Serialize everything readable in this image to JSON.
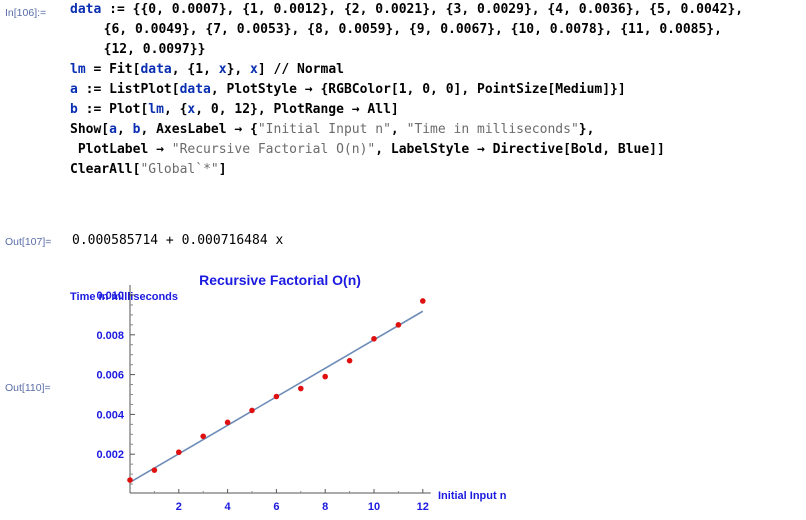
{
  "in_label": "In[106]:=",
  "input_lines": [
    [
      {
        "t": "data",
        "c": "sym"
      },
      {
        "t": " := {{0, 0.0007}, {1, 0.0012}, {2, 0.0021}, {3, 0.0029}, {4, 0.0036}, {5, 0.0042},",
        "c": "plain"
      }
    ],
    [
      {
        "t": "  {6, 0.0049}, {7, 0.0053}, {8, 0.0059}, {9, 0.0067}, {10, 0.0078}, {11, 0.0085},",
        "c": "plain"
      }
    ],
    [
      {
        "t": "  {12, 0.0097}}",
        "c": "plain"
      }
    ],
    [
      {
        "t": "lm",
        "c": "sym"
      },
      {
        "t": " = Fit[",
        "c": "plain"
      },
      {
        "t": "data",
        "c": "sym"
      },
      {
        "t": ", {1, ",
        "c": "plain"
      },
      {
        "t": "x",
        "c": "sym"
      },
      {
        "t": "}, ",
        "c": "plain"
      },
      {
        "t": "x",
        "c": "sym"
      },
      {
        "t": "] // Normal",
        "c": "plain"
      }
    ],
    [
      {
        "t": "a",
        "c": "sym"
      },
      {
        "t": " := ListPlot[",
        "c": "plain"
      },
      {
        "t": "data",
        "c": "sym"
      },
      {
        "t": ", PlotStyle → {RGBColor[1, 0, 0], PointSize[Medium]}]",
        "c": "plain"
      }
    ],
    [
      {
        "t": "b",
        "c": "sym"
      },
      {
        "t": " := Plot[",
        "c": "plain"
      },
      {
        "t": "lm",
        "c": "sym"
      },
      {
        "t": ", {",
        "c": "plain"
      },
      {
        "t": "x",
        "c": "sym"
      },
      {
        "t": ", 0, 12}, PlotRange → All]",
        "c": "plain"
      }
    ],
    [
      {
        "t": "Show[",
        "c": "plain"
      },
      {
        "t": "a",
        "c": "sym"
      },
      {
        "t": ", ",
        "c": "plain"
      },
      {
        "t": "b",
        "c": "sym"
      },
      {
        "t": ", AxesLabel → {",
        "c": "plain"
      },
      {
        "t": "\"Initial Input n\"",
        "c": "str"
      },
      {
        "t": ", ",
        "c": "plain"
      },
      {
        "t": "\"Time in milliseconds\"",
        "c": "str"
      },
      {
        "t": "},",
        "c": "plain"
      }
    ],
    [
      {
        "t": " PlotLabel → ",
        "c": "plain"
      },
      {
        "t": "\"Recursive Factorial O(n)\"",
        "c": "str"
      },
      {
        "t": ", LabelStyle → Directive[Bold, Blue]]",
        "c": "plain"
      }
    ],
    [
      {
        "t": "ClearAll[",
        "c": "plain"
      },
      {
        "t": "\"Global`*\"",
        "c": "str"
      },
      {
        "t": "]",
        "c": "plain"
      }
    ]
  ],
  "out107_label": "Out[107]=",
  "out107_value": "0.000585714 + 0.000716484 x",
  "out110_label": "Out[110]=",
  "chart_data": {
    "type": "scatter",
    "title": "Recursive Factorial O(n)",
    "xlabel": "Initial Input n",
    "ylabel": "Time in milliseconds",
    "xlim": [
      0,
      12
    ],
    "ylim": [
      0,
      0.0105
    ],
    "xticks": [
      "2",
      "4",
      "6",
      "8",
      "10",
      "12"
    ],
    "yticks": [
      "0.002",
      "0.004",
      "0.006",
      "0.008",
      "0.010"
    ],
    "series": [
      {
        "x": [
          0,
          1,
          2,
          3,
          4,
          5,
          6,
          7,
          8,
          9,
          10,
          11,
          12
        ],
        "y": [
          0.0007,
          0.0012,
          0.0021,
          0.0029,
          0.0036,
          0.0042,
          0.0049,
          0.0053,
          0.0059,
          0.0067,
          0.0078,
          0.0085,
          0.0097
        ]
      }
    ],
    "fit_line": {
      "intercept": 0.000585714,
      "slope": 0.000716484
    },
    "colors": {
      "points": "#e01010",
      "line": "#6d8cb8",
      "labels": "#1a1ae0"
    }
  }
}
